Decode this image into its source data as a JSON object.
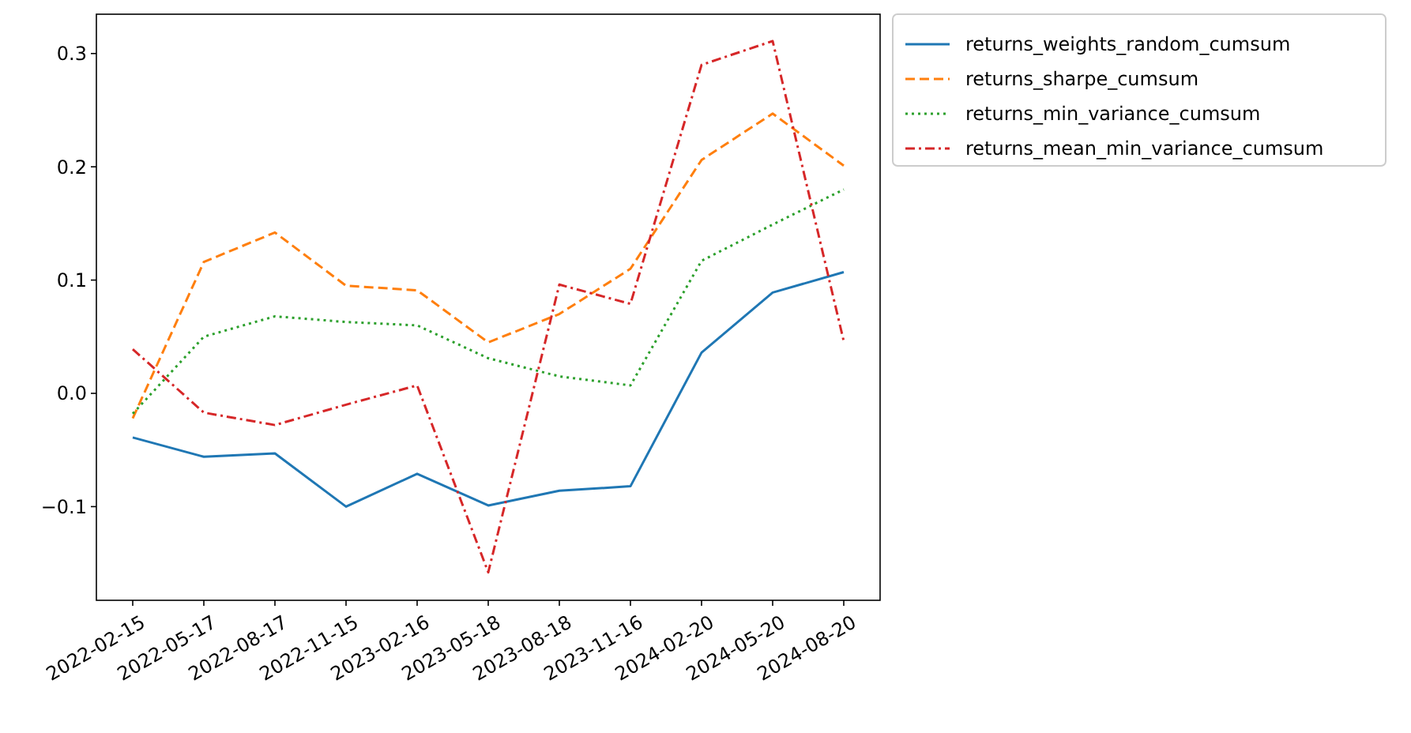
{
  "chart_data": {
    "type": "line",
    "categories": [
      "2022-02-15",
      "2022-05-17",
      "2022-08-17",
      "2022-11-15",
      "2023-02-16",
      "2023-05-18",
      "2023-08-18",
      "2023-11-16",
      "2024-02-20",
      "2024-05-20",
      "2024-08-20"
    ],
    "series": [
      {
        "name": "returns_weights_random_cumsum",
        "color": "#1f77b4",
        "line_style": "solid",
        "values": [
          -0.039,
          -0.056,
          -0.053,
          -0.1,
          -0.071,
          -0.099,
          -0.086,
          -0.082,
          0.036,
          0.089,
          0.107
        ]
      },
      {
        "name": "returns_sharpe_cumsum",
        "color": "#ff7f0e",
        "line_style": "dashed",
        "values": [
          -0.022,
          0.116,
          0.142,
          0.095,
          0.091,
          0.045,
          0.07,
          0.11,
          0.206,
          0.247,
          0.201
        ]
      },
      {
        "name": "returns_min_variance_cumsum",
        "color": "#2ca02c",
        "line_style": "dotted",
        "values": [
          -0.018,
          0.05,
          0.068,
          0.063,
          0.06,
          0.031,
          0.015,
          0.007,
          0.117,
          0.149,
          0.18
        ]
      },
      {
        "name": "returns_mean_min_variance_cumsum",
        "color": "#d62728",
        "line_style": "dashdot",
        "values": [
          0.039,
          -0.017,
          -0.028,
          -0.01,
          0.007,
          -0.158,
          0.096,
          0.079,
          0.29,
          0.311,
          0.046
        ]
      }
    ],
    "ylim": [
      -0.1827,
      0.3347
    ],
    "yticks": [
      {
        "value": -0.1,
        "label": "−0.1"
      },
      {
        "value": 0,
        "label": "0.0"
      },
      {
        "value": 0.1,
        "label": "0.1"
      },
      {
        "value": 0.2,
        "label": "0.2"
      },
      {
        "value": 0.3,
        "label": "0.3"
      }
    ],
    "grid": false,
    "legend": "top right",
    "marker": "none"
  }
}
